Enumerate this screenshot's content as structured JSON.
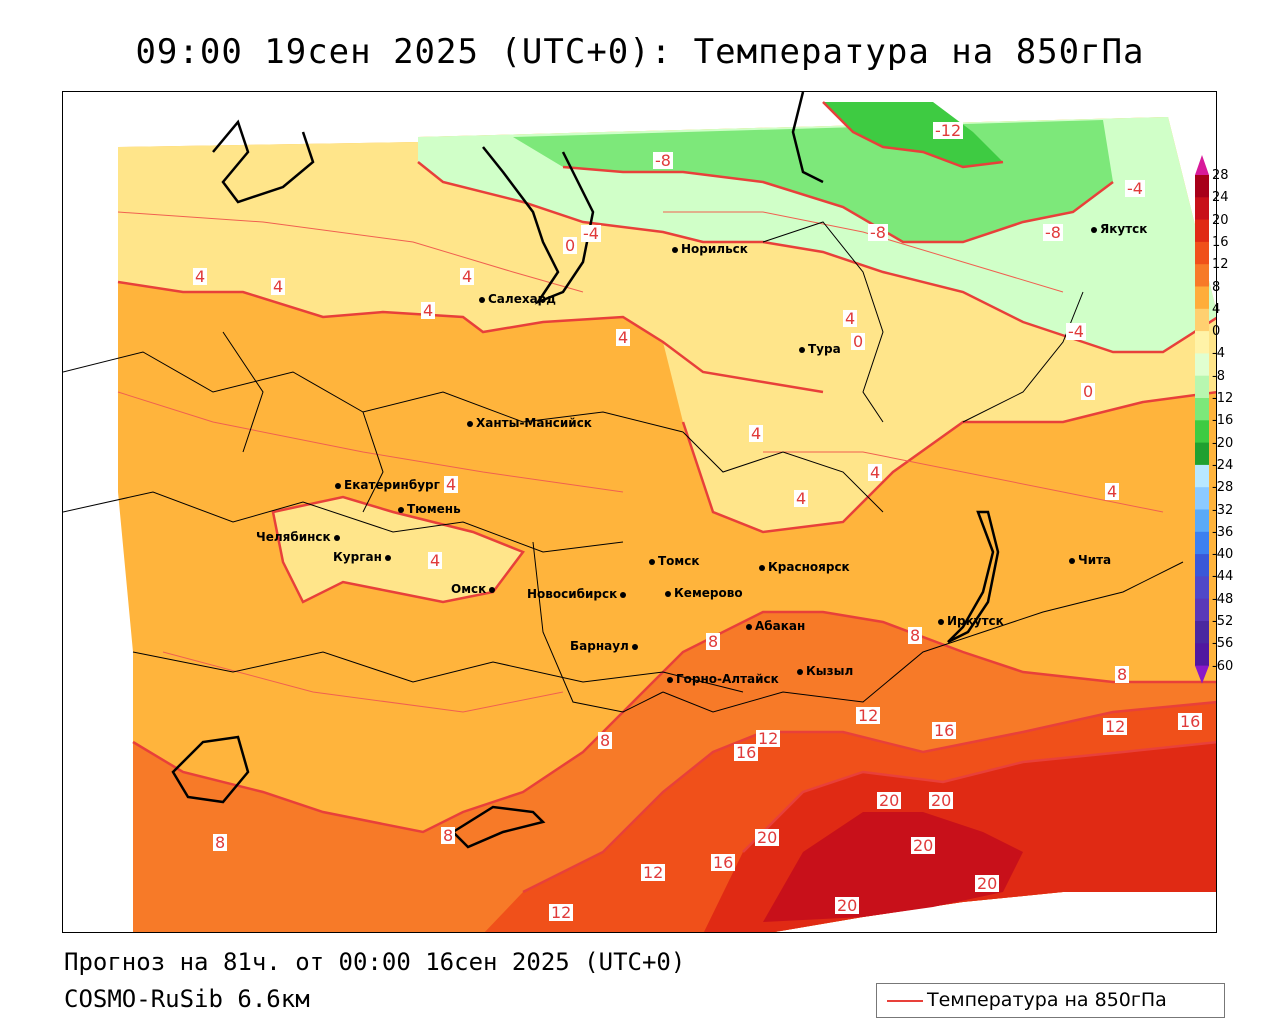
{
  "header": {
    "title": "09:00 19сен 2025 (UTC+0): Температура на 850гПа"
  },
  "footer": {
    "forecast": "Прогноз на 81ч. от 00:00 16сен 2025 (UTC+0)",
    "model": "COSMO-RuSib 6.6км"
  },
  "legend": {
    "label": "Температура на 850гПа",
    "line_color": "#e8403a"
  },
  "colorbar": {
    "levels": [
      "28",
      "24",
      "20",
      "16",
      "12",
      "8",
      "4",
      "0",
      "-4",
      "-8",
      "-12",
      "-16",
      "-20",
      "-24",
      "-28",
      "-32",
      "-36",
      "-40",
      "-44",
      "-48",
      "-52",
      "-56",
      "-60"
    ],
    "colors": [
      "#a8001a",
      "#c8101a",
      "#e02a14",
      "#f0501a",
      "#f77a28",
      "#ffad3a",
      "#ffd070",
      "#fff3a8",
      "#e0ffd0",
      "#b8f7b0",
      "#7de87a",
      "#3ecb42",
      "#20a030",
      "#b8e8ff",
      "#8ccaff",
      "#5aaaf8",
      "#3c80f0",
      "#3a58d8",
      "#5048c8",
      "#5a38b8",
      "#4a28a0",
      "#5018a0"
    ],
    "top_color": "#d81a9a",
    "bottom_color": "#8a18c8"
  },
  "cities": [
    {
      "name": "Норильск"
    },
    {
      "name": "Якутск"
    },
    {
      "name": "Салехард"
    },
    {
      "name": "Тура"
    },
    {
      "name": "Ханты-Мансийск"
    },
    {
      "name": "Екатеринбург"
    },
    {
      "name": "Тюмень"
    },
    {
      "name": "Челябинск"
    },
    {
      "name": "Курган"
    },
    {
      "name": "Омск"
    },
    {
      "name": "Новосибирск"
    },
    {
      "name": "Томск"
    },
    {
      "name": "Красноярск"
    },
    {
      "name": "Кемерово"
    },
    {
      "name": "Барнаул"
    },
    {
      "name": "Абакан"
    },
    {
      "name": "Горно-Алтайск"
    },
    {
      "name": "Кызыл"
    },
    {
      "name": "Иркутск"
    },
    {
      "name": "Чита"
    }
  ],
  "contour_labels": [
    "-12",
    "-8",
    "-8",
    "-8",
    "-4",
    "-4",
    "-4",
    "0",
    "0",
    "0",
    "4",
    "4",
    "4",
    "4",
    "4",
    "4",
    "4",
    "4",
    "4",
    "4",
    "4",
    "4",
    "8",
    "8",
    "8",
    "8",
    "8",
    "8",
    "12",
    "12",
    "12",
    "12",
    "12",
    "16",
    "16",
    "16",
    "16",
    "20",
    "20",
    "20",
    "20",
    "20",
    "20"
  ]
}
